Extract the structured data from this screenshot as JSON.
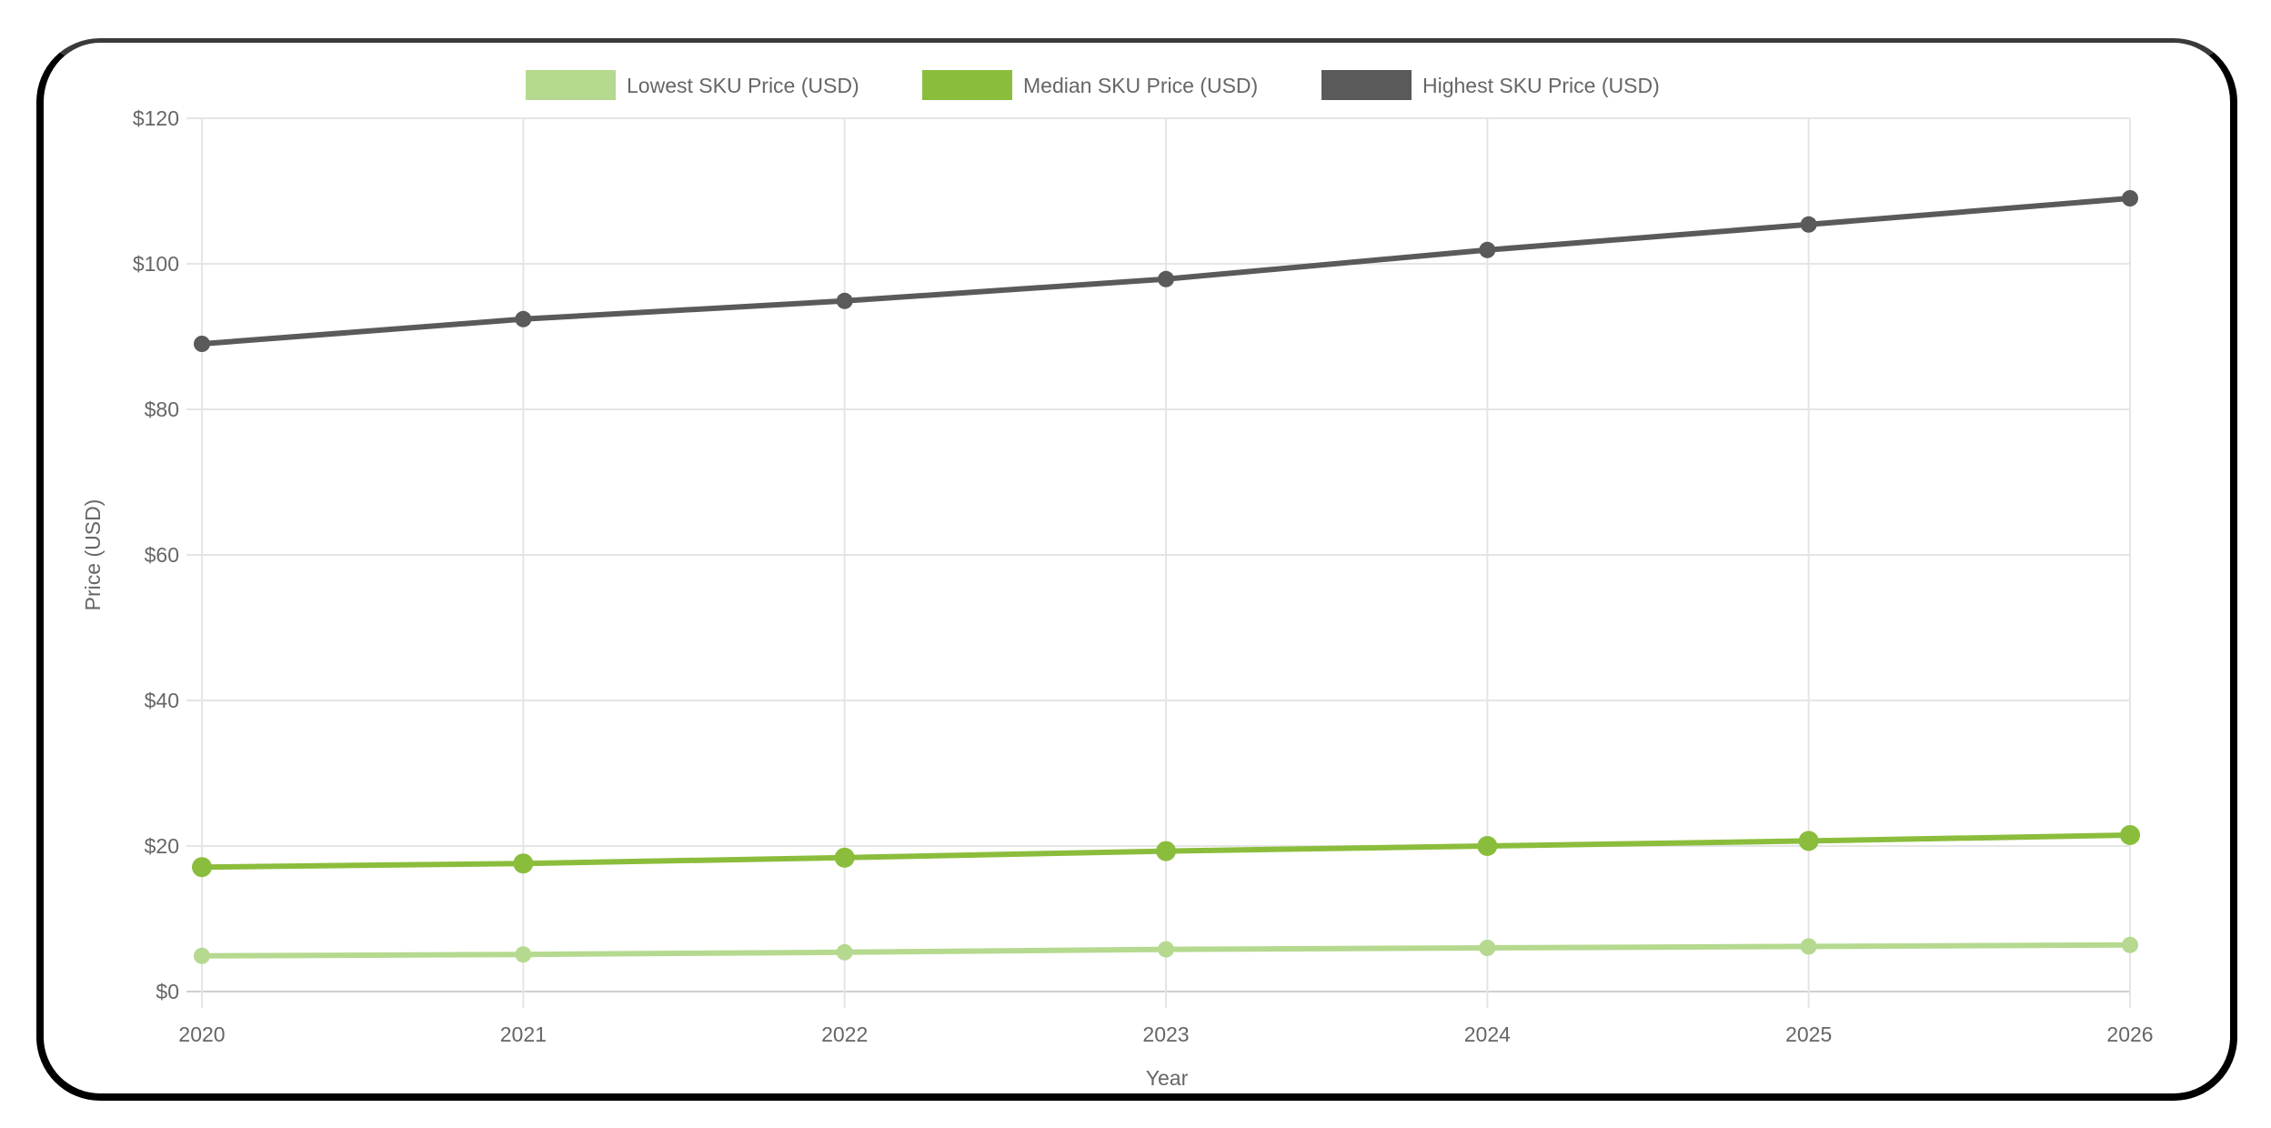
{
  "chart_data": {
    "type": "line",
    "title": "",
    "xlabel": "Year",
    "ylabel": "Price (USD)",
    "categories": [
      "2020",
      "2021",
      "2022",
      "2023",
      "2024",
      "2025",
      "2026"
    ],
    "ylim": [
      0,
      120
    ],
    "yticks": [
      "$0",
      "$20",
      "$40",
      "$60",
      "$80",
      "$100",
      "$120"
    ],
    "ytick_values": [
      0,
      20,
      40,
      60,
      80,
      100,
      120
    ],
    "grid": true,
    "legend_position": "top",
    "series": [
      {
        "name": "Lowest SKU Price (USD)",
        "color": "#b5d98f",
        "values": [
          4.9,
          5.1,
          5.4,
          5.8,
          6.0,
          6.2,
          6.4
        ]
      },
      {
        "name": "Median SKU Price (USD)",
        "color": "#8bbd3c",
        "values": [
          17.1,
          17.6,
          18.4,
          19.3,
          20.0,
          20.7,
          21.5
        ]
      },
      {
        "name": "Highest SKU Price (USD)",
        "color": "#5a5a5a",
        "values": [
          89.0,
          92.4,
          94.9,
          97.9,
          101.9,
          105.4,
          109.0
        ]
      }
    ]
  },
  "legend": {
    "items": [
      {
        "label": "Lowest SKU Price (USD)",
        "color": "#b5d98f"
      },
      {
        "label": "Median SKU Price (USD)",
        "color": "#8bbd3c"
      },
      {
        "label": "Highest SKU Price (USD)",
        "color": "#5a5a5a"
      }
    ]
  },
  "axes": {
    "x_title": "Year",
    "y_title": "Price (USD)"
  },
  "colors": {
    "grid": "#e5e5e5",
    "axis_text": "#666666",
    "frame": "#000000"
  }
}
